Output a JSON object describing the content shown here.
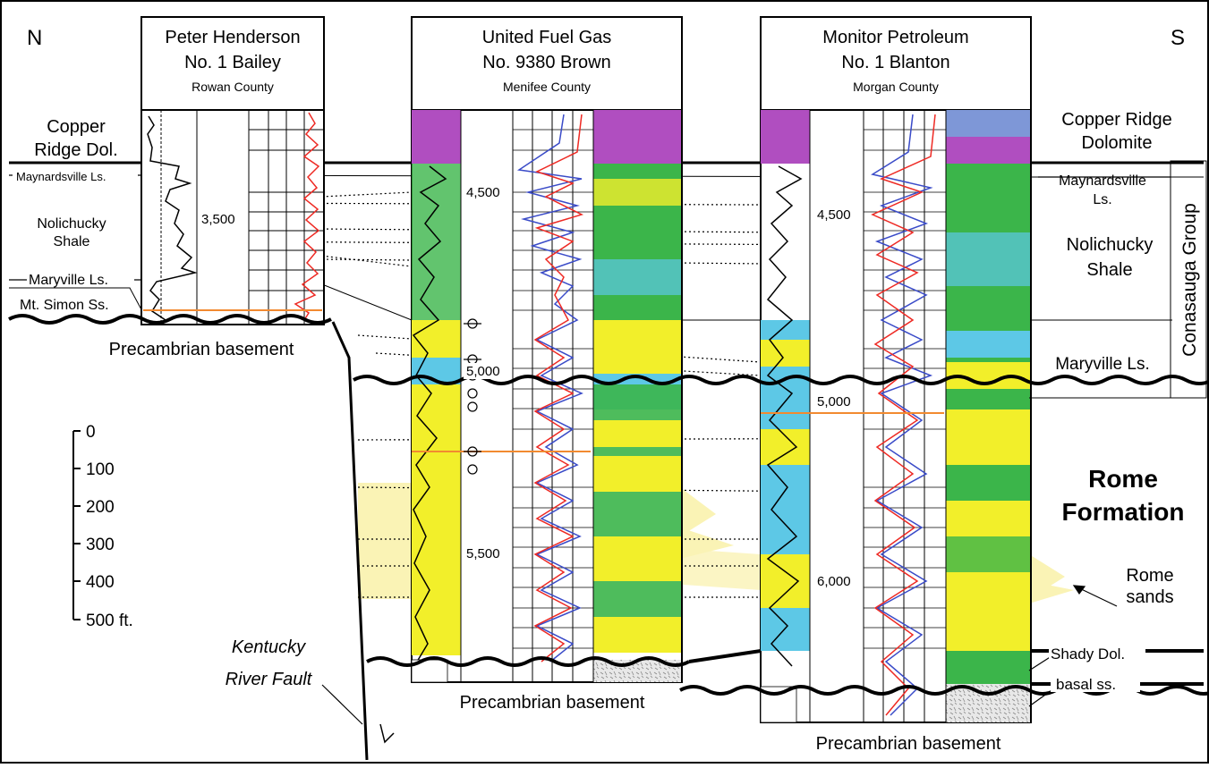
{
  "direction": {
    "north": "N",
    "south": "S"
  },
  "wells": [
    {
      "operator": "Peter Henderson",
      "well": "No. 1 Bailey",
      "county": "Rowan County"
    },
    {
      "operator": "United Fuel Gas",
      "well": "No. 9380 Brown",
      "county": "Menifee County"
    },
    {
      "operator": "Monitor Petroleum",
      "well": "No. 1 Blanton",
      "county": "Morgan County"
    }
  ],
  "depth_labels": {
    "bailey": [
      "3,500"
    ],
    "brown": [
      "4,500",
      "5,000",
      "5,500"
    ],
    "blanton": [
      "4,500",
      "5,000",
      "6,000"
    ]
  },
  "left_units": {
    "copper_ridge_1": "Copper",
    "copper_ridge_2": "Ridge Dol.",
    "maynardsville": "Maynardsville Ls.",
    "nolichucky_1": "Nolichucky",
    "nolichucky_2": "Shale",
    "maryville": "Maryville Ls.",
    "mt_simon": "Mt. Simon Ss."
  },
  "right_units": {
    "copper_ridge_1": "Copper Ridge",
    "copper_ridge_2": "Dolomite",
    "maynardsville_1": "Maynardsville",
    "maynardsville_2": "Ls.",
    "nolichucky_1": "Nolichucky",
    "nolichucky_2": "Shale",
    "maryville": "Maryville Ls.",
    "rome_1": "Rome",
    "rome_2": "Formation",
    "rome_sands_1": "Rome",
    "rome_sands_2": "sands",
    "shady": "Shady Dol.",
    "basal": "basal ss."
  },
  "group_label": "Conasauga Group",
  "basement_label": "Precambrian basement",
  "fault_label_1": "Kentucky",
  "fault_label_2": "River Fault",
  "scale_labels": [
    "0",
    "100",
    "200",
    "300",
    "400",
    "500 ft."
  ],
  "colors": {
    "purple": "#b04ec0",
    "yellow": "#f2ef2a",
    "green": "#3bb54a",
    "cyan": "#5dc8e6",
    "gamma_red": "#ee2a24",
    "neutron_blue": "#3a4bc8",
    "orange_marker": "#f28a30",
    "sand_fill": "#faf3b5"
  }
}
